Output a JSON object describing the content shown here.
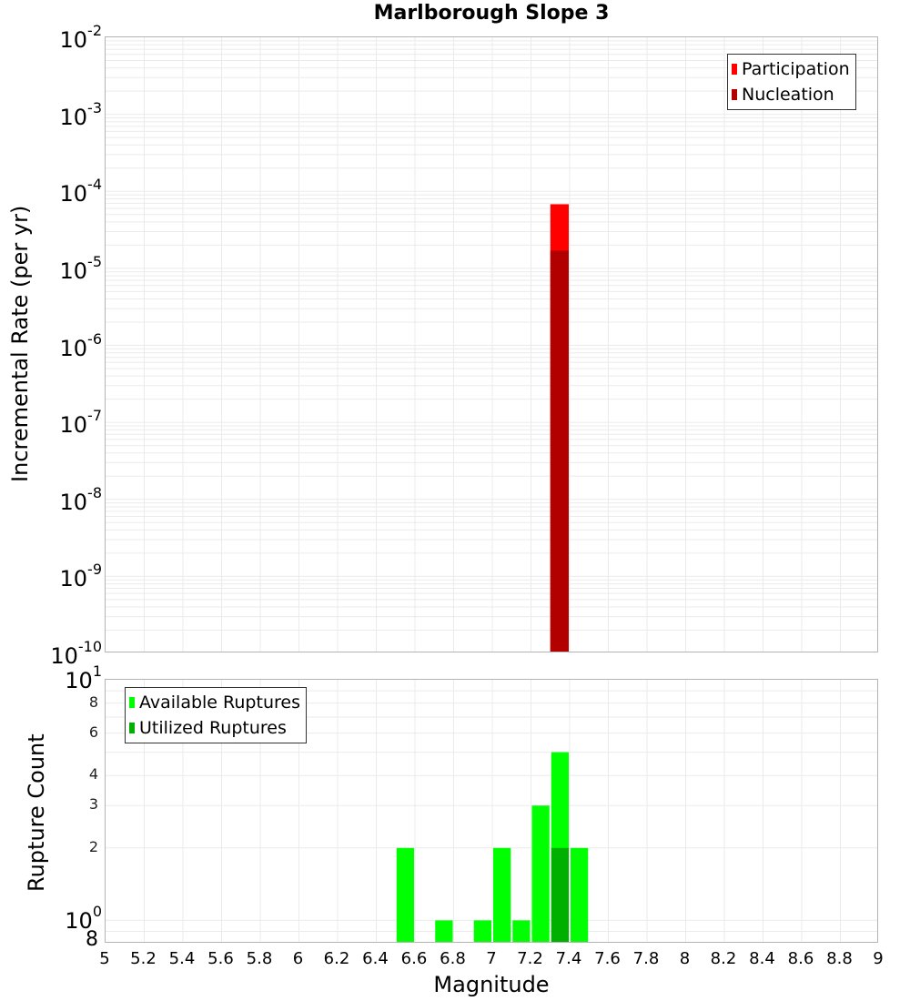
{
  "title": "Marlborough Slope 3",
  "colors": {
    "participation": "#ff0000",
    "nucleation": "#b20000",
    "available": "#00ff00",
    "utilized": "#00b000",
    "grid": "#ebebeb",
    "border": "#b4b4b4"
  },
  "top_chart": {
    "ylabel": "Incremental Rate (per yr)",
    "yticks": [
      {
        "base": "10",
        "exp": "-2"
      },
      {
        "base": "10",
        "exp": "-3"
      },
      {
        "base": "10",
        "exp": "-4"
      },
      {
        "base": "10",
        "exp": "-5"
      },
      {
        "base": "10",
        "exp": "-6"
      },
      {
        "base": "10",
        "exp": "-7"
      },
      {
        "base": "10",
        "exp": "-8"
      },
      {
        "base": "10",
        "exp": "-9"
      },
      {
        "base": "10",
        "exp": "-10"
      }
    ],
    "legend": [
      "Participation",
      "Nucleation"
    ]
  },
  "bottom_chart": {
    "ylabel": "Rupture Count",
    "yticks_major": [
      {
        "base": "10",
        "exp": "1"
      },
      {
        "base": "10",
        "exp": "0"
      }
    ],
    "yticks_minor": [
      "8",
      "6",
      "4",
      "3",
      "2",
      "8"
    ],
    "legend": [
      "Available Ruptures",
      "Utilized Ruptures"
    ]
  },
  "xlabel": "Magnitude",
  "xticks": [
    "5",
    "5.2",
    "5.4",
    "5.6",
    "5.8",
    "6",
    "6.2",
    "6.4",
    "6.6",
    "6.8",
    "7",
    "7.2",
    "7.4",
    "7.6",
    "7.8",
    "8",
    "8.2",
    "8.4",
    "8.6",
    "8.8",
    "9"
  ],
  "chart_data": [
    {
      "type": "bar",
      "title": "Marlborough Slope 3",
      "xlabel": "Magnitude",
      "ylabel": "Incremental Rate (per yr)",
      "yscale": "log",
      "xlim": [
        5,
        9
      ],
      "ylim": [
        1e-10,
        0.01
      ],
      "grid": true,
      "legend_position": "top-right",
      "bin_width": 0.1,
      "x": [
        7.35
      ],
      "series": [
        {
          "name": "Participation",
          "color": "#ff0000",
          "values": [
            6.8e-05
          ]
        },
        {
          "name": "Nucleation",
          "color": "#b20000",
          "values": [
            1.7e-05
          ]
        }
      ]
    },
    {
      "type": "bar",
      "title": "",
      "xlabel": "Magnitude",
      "ylabel": "Rupture Count",
      "yscale": "log",
      "xlim": [
        5,
        9
      ],
      "ylim": [
        0.8,
        10
      ],
      "grid": true,
      "legend_position": "top-left",
      "bin_width": 0.1,
      "x": [
        6.55,
        6.75,
        6.95,
        7.05,
        7.15,
        7.25,
        7.35,
        7.45
      ],
      "series": [
        {
          "name": "Available Ruptures",
          "color": "#00ff00",
          "values": [
            2,
            1,
            1,
            2,
            1,
            3,
            5,
            2
          ]
        },
        {
          "name": "Utilized Ruptures",
          "color": "#00b000",
          "values": [
            0,
            0,
            0,
            0,
            0,
            0,
            2,
            0
          ]
        }
      ]
    }
  ]
}
